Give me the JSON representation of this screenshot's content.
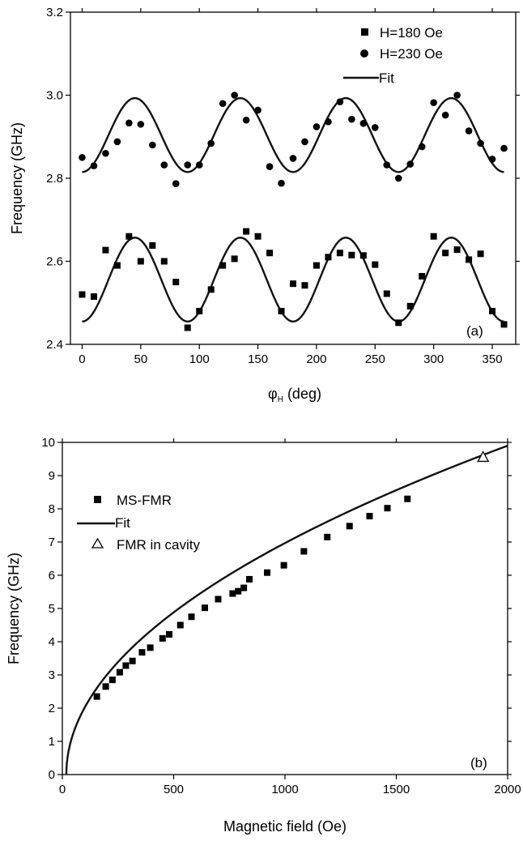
{
  "chart_data": [
    {
      "type": "scatter",
      "panel_label": "(a)",
      "xlabel_main": "φ",
      "xlabel_sub": "H",
      "xlabel_unit": " (deg)",
      "ylabel": "Frequency (GHz)",
      "xlim": [
        -10,
        370
      ],
      "ylim": [
        2.4,
        3.2
      ],
      "xticks": [
        0,
        50,
        100,
        150,
        200,
        250,
        300,
        350
      ],
      "yticks": [
        2.4,
        2.6,
        2.8,
        3.0,
        3.2
      ],
      "ytick_labels": [
        "2.4",
        "2.6",
        "2.8",
        "3.0",
        "3.2"
      ],
      "legend": {
        "position": "top-right"
      },
      "series": [
        {
          "name": "H=180 Oe",
          "marker": "square",
          "x": [
            0,
            10,
            20,
            30,
            40,
            50,
            60,
            70,
            80,
            90,
            100,
            110,
            120,
            130,
            140,
            150,
            160,
            170,
            180,
            190,
            200,
            210,
            220,
            230,
            240,
            250,
            260,
            270,
            280,
            290,
            300,
            310,
            320,
            330,
            340,
            350,
            360
          ],
          "y": [
            2.52,
            2.515,
            2.627,
            2.59,
            2.66,
            2.6,
            2.638,
            2.6,
            2.55,
            2.44,
            2.48,
            2.532,
            2.59,
            2.606,
            2.672,
            2.66,
            2.62,
            2.48,
            2.546,
            2.542,
            2.59,
            2.61,
            2.62,
            2.615,
            2.614,
            2.592,
            2.522,
            2.452,
            2.492,
            2.564,
            2.66,
            2.62,
            2.628,
            2.604,
            2.618,
            2.48,
            2.448
          ]
        },
        {
          "name": "H=230 Oe",
          "marker": "circle",
          "x": [
            0,
            10,
            20,
            30,
            40,
            50,
            60,
            70,
            80,
            90,
            100,
            110,
            120,
            130,
            140,
            150,
            160,
            170,
            180,
            190,
            200,
            210,
            220,
            230,
            240,
            250,
            260,
            270,
            280,
            290,
            300,
            310,
            320,
            330,
            340,
            350,
            360
          ],
          "y": [
            2.85,
            2.83,
            2.86,
            2.888,
            2.933,
            2.93,
            2.88,
            2.832,
            2.787,
            2.832,
            2.832,
            2.884,
            2.98,
            3.0,
            2.94,
            2.964,
            2.828,
            2.788,
            2.848,
            2.888,
            2.924,
            2.936,
            2.984,
            2.942,
            2.932,
            2.922,
            2.832,
            2.8,
            2.834,
            2.876,
            2.982,
            2.952,
            3.0,
            2.914,
            2.884,
            2.846,
            2.872
          ]
        },
        {
          "name": "Fit",
          "type": "line",
          "curves": [
            {
              "y_min": 2.455,
              "y_max": 2.657
            },
            {
              "y_min": 2.815,
              "y_max": 2.993
            }
          ]
        }
      ]
    },
    {
      "type": "scatter",
      "panel_label": "(b)",
      "xlabel": "Magnetic field (Oe)",
      "ylabel": "Frequency (GHz)",
      "xlim": [
        0,
        2000
      ],
      "ylim": [
        0,
        10
      ],
      "xticks": [
        0,
        500,
        1000,
        1500,
        2000
      ],
      "yticks": [
        0,
        1,
        2,
        3,
        4,
        5,
        6,
        7,
        8,
        9,
        10
      ],
      "legend": {
        "position": "top-left"
      },
      "series": [
        {
          "name": "MS-FMR",
          "marker": "square",
          "x": [
            155,
            195,
            225,
            258,
            285,
            315,
            358,
            395,
            450,
            480,
            530,
            580,
            640,
            700,
            765,
            790,
            815,
            840,
            920,
            995,
            1085,
            1190,
            1290,
            1380,
            1460,
            1550
          ],
          "y": [
            2.35,
            2.65,
            2.85,
            3.08,
            3.28,
            3.42,
            3.68,
            3.82,
            4.1,
            4.22,
            4.5,
            4.75,
            5.02,
            5.28,
            5.45,
            5.52,
            5.62,
            5.88,
            6.08,
            6.3,
            6.72,
            7.15,
            7.48,
            7.78,
            8.02,
            8.3
          ]
        },
        {
          "name": "Fit",
          "type": "line",
          "x_start": 18,
          "x_end": 2000,
          "y_end": 9.9
        },
        {
          "name": "FMR in cavity",
          "marker": "triangle-open",
          "x": [
            1890
          ],
          "y": [
            9.55
          ]
        }
      ]
    }
  ]
}
